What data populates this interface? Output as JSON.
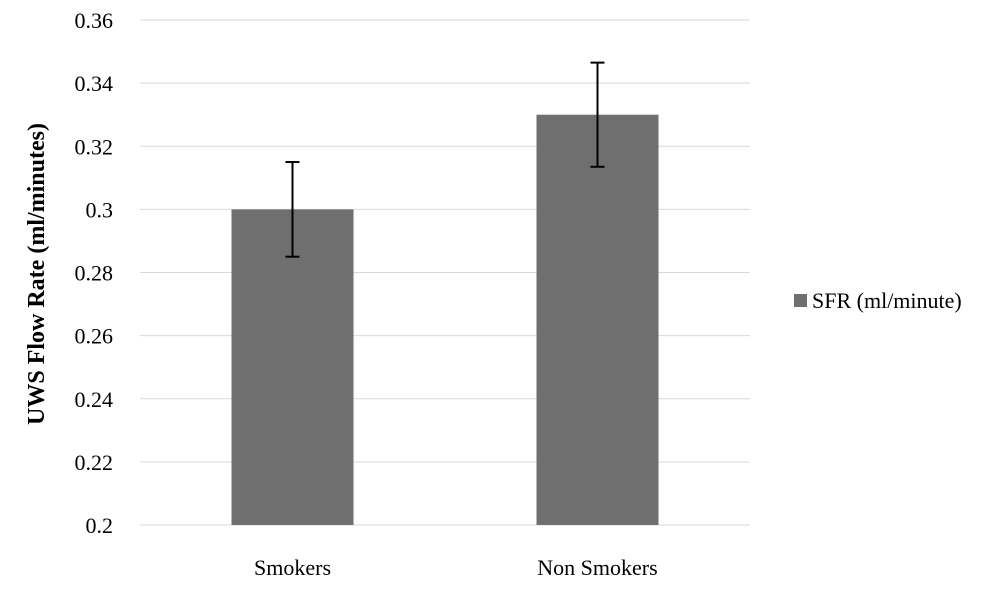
{
  "chart_data": {
    "type": "bar",
    "categories": [
      "Smokers",
      "Non Smokers"
    ],
    "series": [
      {
        "name": "SFR (ml/minute)",
        "values": [
          0.3,
          0.33
        ],
        "error_low": [
          0.285,
          0.3135
        ],
        "error_high": [
          0.315,
          0.3465
        ],
        "color": "#6f6f6f"
      }
    ],
    "title": "",
    "xlabel": "",
    "ylabel": "UWS Flow Rate (ml/minutes)",
    "ylim": [
      0.2,
      0.36
    ],
    "yticks": [
      "0.2",
      "0.22",
      "0.24",
      "0.26",
      "0.28",
      "0.3",
      "0.32",
      "0.34",
      "0.36"
    ],
    "grid": true,
    "legend_position": "right"
  }
}
